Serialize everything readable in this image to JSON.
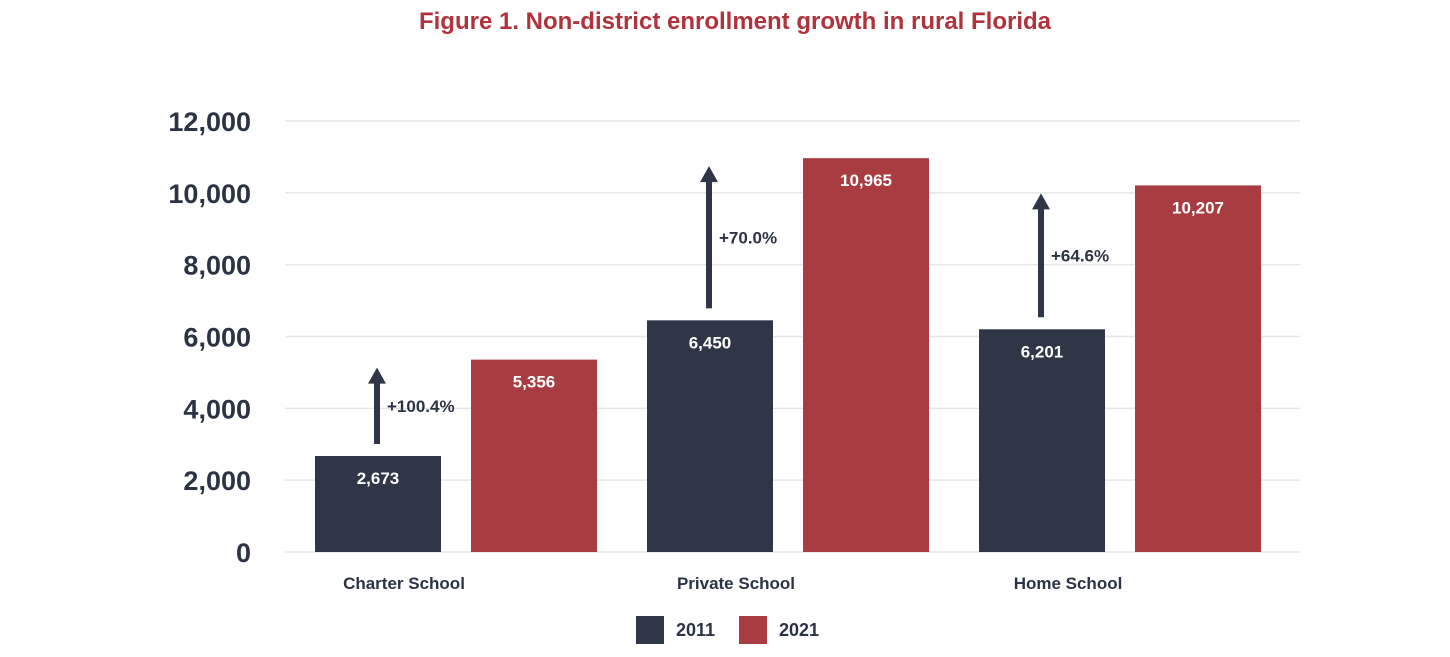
{
  "chart_data": {
    "type": "bar",
    "title": "Figure 1. Non-district enrollment growth in rural Florida",
    "xlabel": "",
    "ylabel": "",
    "categories": [
      "Charter School",
      "Private School",
      "Home School"
    ],
    "series": [
      {
        "name": "2011",
        "color": "#2e3648",
        "values": [
          2673,
          6450,
          6201
        ],
        "labels": [
          "2,673",
          "6,450",
          "6,201"
        ]
      },
      {
        "name": "2021",
        "color": "#a83c41",
        "values": [
          5356,
          10965,
          10207
        ],
        "labels": [
          "5,356",
          "10,965",
          "10,207"
        ]
      }
    ],
    "growth_annotations": [
      "+100.4%",
      "+70.0%",
      "+64.6%"
    ],
    "ylim": [
      0,
      12000
    ],
    "yticks": [
      0,
      2000,
      4000,
      6000,
      8000,
      10000,
      12000
    ],
    "ytick_labels": [
      "0",
      "2,000",
      "4,000",
      "6,000",
      "8,000",
      "10,000",
      "12,000"
    ],
    "grid": true,
    "legend_position": "bottom-center",
    "title_color": "#b0323c",
    "arrow_color": "#2e3648"
  }
}
